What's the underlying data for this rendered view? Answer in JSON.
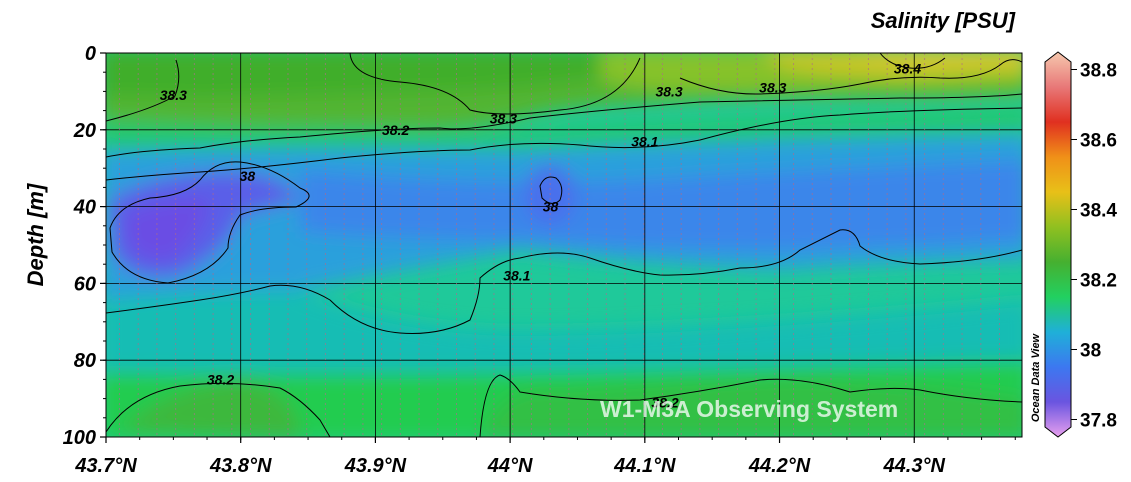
{
  "chart_data": {
    "type": "heatmap",
    "title": "Salinity [PSU]",
    "xlabel": "",
    "ylabel": "Depth [m]",
    "x_ticks": [
      "43.7°N",
      "43.8°N",
      "43.9°N",
      "44°N",
      "44.1°N",
      "44.2°N",
      "44.3°N"
    ],
    "x_tick_values": [
      43.7,
      43.8,
      43.9,
      44.0,
      44.1,
      44.2,
      44.3
    ],
    "xlim": [
      43.7,
      44.38
    ],
    "y_ticks": [
      "0",
      "20",
      "40",
      "60",
      "80",
      "100"
    ],
    "y_tick_values": [
      0,
      20,
      40,
      60,
      80,
      100
    ],
    "ylim": [
      0,
      100
    ],
    "y_inverted": true,
    "grid": true,
    "colorbar": {
      "label": "Salinity [PSU]",
      "min": 37.75,
      "max": 38.85,
      "tick_labels": [
        "38.8",
        "38.6",
        "38.4",
        "38.2",
        "38",
        "37.8"
      ],
      "tick_values": [
        38.8,
        38.6,
        38.4,
        38.2,
        38.0,
        37.8
      ],
      "colors": [
        "#e8a0ee",
        "#6a55e0",
        "#3c78f0",
        "#1fb0d8",
        "#22d060",
        "#46b030",
        "#90c020",
        "#e8c018",
        "#f09018",
        "#e03020",
        "#e87878",
        "#f6c8ae"
      ]
    },
    "contour_labels": [
      {
        "text": "38.3",
        "lat": 43.75,
        "depth": 11
      },
      {
        "text": "38.2",
        "lat": 43.915,
        "depth": 20
      },
      {
        "text": "38.3",
        "lat": 43.995,
        "depth": 17
      },
      {
        "text": "38.3",
        "lat": 44.118,
        "depth": 10
      },
      {
        "text": "38.3",
        "lat": 44.195,
        "depth": 9
      },
      {
        "text": "38.4",
        "lat": 44.295,
        "depth": 4
      },
      {
        "text": "38.1",
        "lat": 44.1,
        "depth": 23
      },
      {
        "text": "38",
        "lat": 43.805,
        "depth": 32
      },
      {
        "text": "38",
        "lat": 44.03,
        "depth": 40
      },
      {
        "text": "38.1",
        "lat": 44.005,
        "depth": 58
      },
      {
        "text": "38.2",
        "lat": 43.785,
        "depth": 85
      },
      {
        "text": "38.2",
        "lat": 44.115,
        "depth": 91
      }
    ],
    "sample_points": [
      {
        "lat": 43.72,
        "depth": 5,
        "value": 38.3
      },
      {
        "lat": 43.75,
        "depth": 45,
        "value": 37.92
      },
      {
        "lat": 43.9,
        "depth": 5,
        "value": 38.32
      },
      {
        "lat": 44.03,
        "depth": 38,
        "value": 37.98
      },
      {
        "lat": 44.2,
        "depth": 4,
        "value": 38.4
      },
      {
        "lat": 44.3,
        "depth": 3,
        "value": 38.45
      },
      {
        "lat": 44.3,
        "depth": 35,
        "value": 38.04
      },
      {
        "lat": 44.1,
        "depth": 90,
        "value": 38.2
      },
      {
        "lat": 43.8,
        "depth": 90,
        "value": 38.22
      }
    ]
  },
  "footer": {
    "watermark": "W1-M3A Observing System",
    "credit": "Ocean Data View"
  }
}
